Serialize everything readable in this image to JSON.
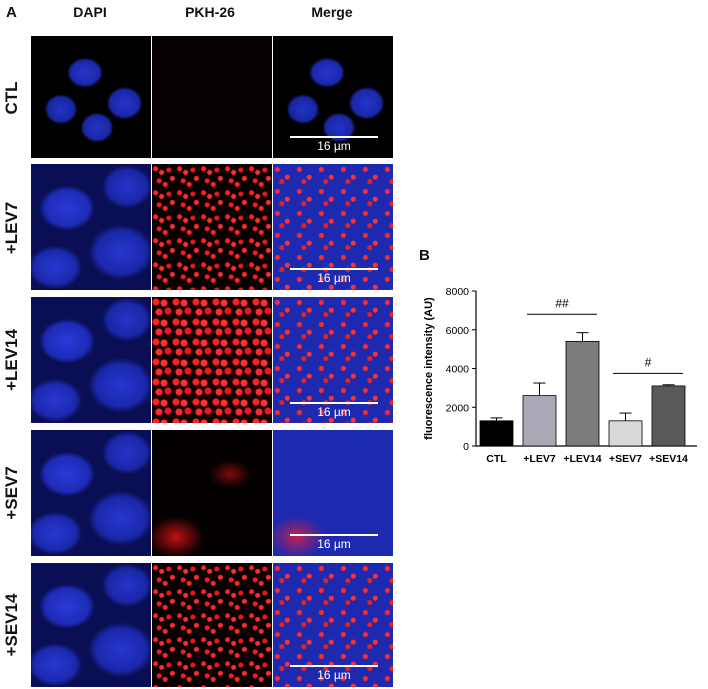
{
  "panel_a": {
    "letter": "A",
    "columns": [
      "DAPI",
      "PKH-26",
      "Merge"
    ],
    "rows": [
      "CTL",
      "+LEV7",
      "+LEV14",
      "+SEV7",
      "+SEV14"
    ],
    "scale_label": "16 µm"
  },
  "panel_b": {
    "letter": "B"
  },
  "chart_data": {
    "type": "bar",
    "categories": [
      "CTL",
      "+LEV7",
      "+LEV14",
      "+SEV7",
      "+SEV14"
    ],
    "values": [
      1300,
      2600,
      5400,
      1300,
      3100
    ],
    "errors": [
      150,
      650,
      450,
      400,
      60
    ],
    "colors": [
      "#000000",
      "#a9a9b6",
      "#7c7c7c",
      "#d9d9d9",
      "#595959"
    ],
    "ylabel": "fluorescence intensity (AU)",
    "xlabel": "",
    "ylim": [
      0,
      8000
    ],
    "yticks": [
      0,
      2000,
      4000,
      6000,
      8000
    ],
    "annotations": [
      {
        "text": "##",
        "from": 1,
        "to": 2,
        "y": 6800
      },
      {
        "text": "#",
        "from": 3,
        "to": 4,
        "y": 3750
      }
    ],
    "grid": false
  }
}
